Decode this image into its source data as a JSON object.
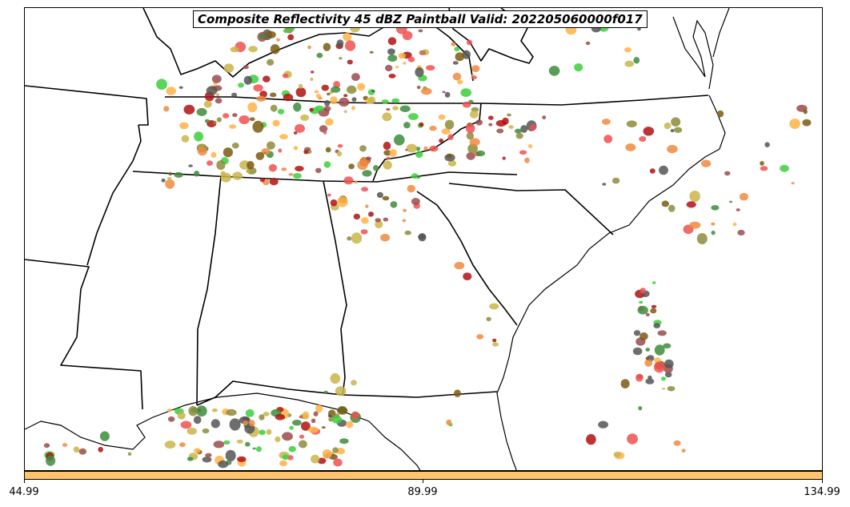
{
  "title": "Composite Reflectivity 45 dBZ Paintball Valid: 202205060000f017",
  "colorbar": {
    "color": "#ffc36b",
    "ticks": [
      "44.99",
      "89.99",
      "134.99"
    ]
  },
  "member_colors": [
    "#f05050",
    "#9a4b4b",
    "#f08a40",
    "#ffb347",
    "#c9b54a",
    "#8c8c3c",
    "#3ccf3c",
    "#3c8c3c",
    "#555555",
    "#b01010",
    "#7a5a10"
  ],
  "map": {
    "region": "Southeastern United States",
    "features": [
      "state borders",
      "coastlines",
      "reflectivity paintball blobs"
    ]
  }
}
